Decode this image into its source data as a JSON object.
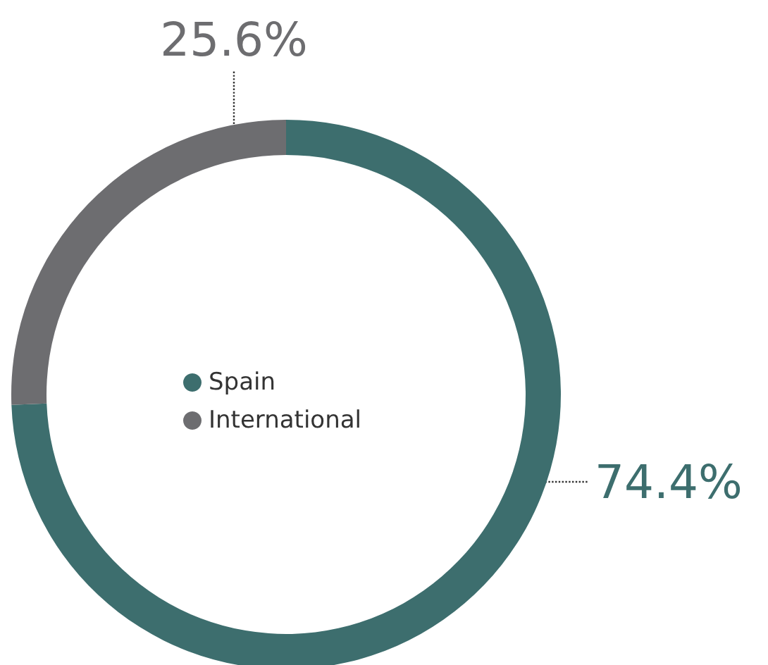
{
  "chart_data": {
    "type": "donut",
    "categories": [
      "Spain",
      "International"
    ],
    "values": [
      74.4,
      25.6
    ],
    "colors": [
      "#3d6e6e",
      "#6d6d70"
    ],
    "value_labels": [
      "74.4%",
      "25.6%"
    ],
    "legend": "center"
  }
}
